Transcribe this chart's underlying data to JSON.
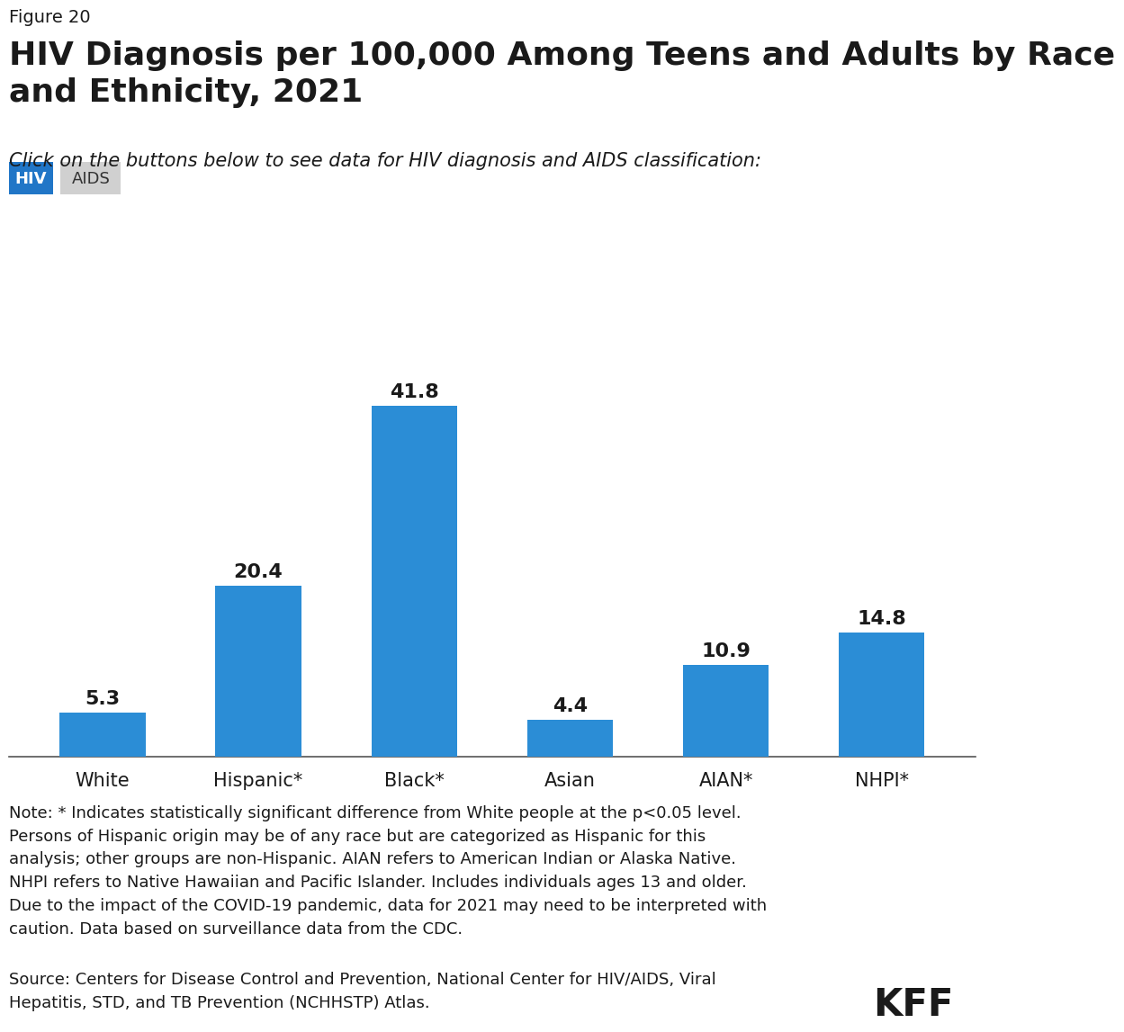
{
  "figure_label": "Figure 20",
  "title": "HIV Diagnosis per 100,000 Among Teens and Adults by Race\nand Ethnicity, 2021",
  "subtitle": "Click on the buttons below to see data for HIV diagnosis and AIDS classification:",
  "button_hiv_label": "HIV",
  "button_hiv_color": "#2176c7",
  "button_aids_label": "AIDS",
  "button_aids_color": "#d0d0d0",
  "categories": [
    "White",
    "Hispanic*",
    "Black*",
    "Asian",
    "AIAN*",
    "NHPI*"
  ],
  "values": [
    5.3,
    20.4,
    41.8,
    4.4,
    10.9,
    14.8
  ],
  "bar_color": "#2b8dd6",
  "bar_label_color": "#1a1a1a",
  "background_color": "#ffffff",
  "note_text": "Note: * Indicates statistically significant difference from White people at the p<0.05 level.\nPersons of Hispanic origin may be of any race but are categorized as Hispanic for this\nanalysis; other groups are non-Hispanic. AIAN refers to American Indian or Alaska Native.\nNHPI refers to Native Hawaiian and Pacific Islander. Includes individuals ages 13 and older.\nDue to the impact of the COVID-19 pandemic, data for 2021 may need to be interpreted with\ncaution. Data based on surveillance data from the CDC.",
  "source_text": "Source: Centers for Disease Control and Prevention, National Center for HIV/AIDS, Viral\nHepatitis, STD, and TB Prevention (NCHHSTP) Atlas.",
  "kff_label": "KFF",
  "title_fontsize": 26,
  "figure_label_fontsize": 14,
  "subtitle_fontsize": 15,
  "bar_label_fontsize": 16,
  "xtick_fontsize": 15,
  "note_fontsize": 13,
  "source_fontsize": 13,
  "kff_fontsize": 30,
  "ylim": [
    0,
    48
  ]
}
